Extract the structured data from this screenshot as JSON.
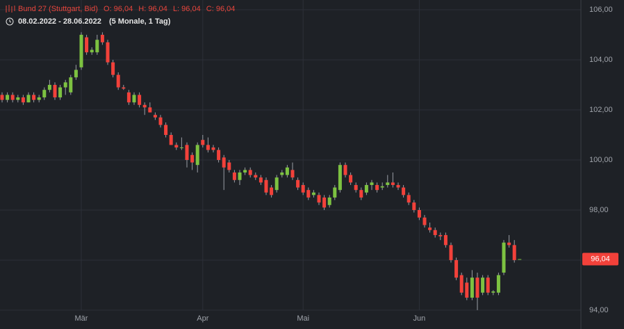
{
  "chart_data": {
    "type": "candlestick",
    "title": "Bund 27 (Stuttgart, Bid)",
    "quote": [
      "O: 96,04",
      "H: 96,04",
      "L: 96,04",
      "C: 96,04"
    ],
    "range": "08.02.2022 - 28.06.2022",
    "period": "(5 Monale, 1 Tag)",
    "last_price": {
      "value": 96.04,
      "label": "96,04"
    },
    "up_color": "#7dc241",
    "down_color": "#f2413a",
    "grid": true,
    "ylim": [
      93.47,
      106.39
    ],
    "yticks": [
      {
        "value": 94,
        "label": "94,00"
      },
      {
        "value": 96,
        "label": "96,00"
      },
      {
        "value": 98,
        "label": "98,00"
      },
      {
        "value": 100,
        "label": "100,00"
      },
      {
        "value": 102,
        "label": "102,00"
      },
      {
        "value": 104,
        "label": "104,00"
      },
      {
        "value": 106,
        "label": "106,00"
      }
    ],
    "categories": [
      null,
      null,
      null,
      null,
      null,
      null,
      null,
      null,
      null,
      null,
      null,
      null,
      null,
      null,
      null,
      "Mär",
      null,
      null,
      null,
      null,
      null,
      null,
      null,
      null,
      null,
      null,
      null,
      null,
      null,
      null,
      null,
      null,
      null,
      null,
      null,
      null,
      null,
      null,
      "Apr",
      null,
      null,
      null,
      null,
      null,
      null,
      null,
      null,
      null,
      null,
      null,
      null,
      null,
      null,
      null,
      null,
      null,
      null,
      "Mai",
      null,
      null,
      null,
      null,
      null,
      null,
      null,
      null,
      null,
      null,
      null,
      null,
      null,
      null,
      null,
      null,
      null,
      null,
      null,
      null,
      null,
      "Jun",
      null,
      null,
      null,
      null,
      null,
      null,
      null,
      null,
      null,
      null,
      null,
      null,
      null,
      null,
      null,
      null,
      null,
      null,
      null
    ],
    "open": [
      102.6,
      102.4,
      102.6,
      102.4,
      102.5,
      102.3,
      102.6,
      102.4,
      102.5,
      102.8,
      103.0,
      102.5,
      102.9,
      102.7,
      103.3,
      103.7,
      104.9,
      104.3,
      104.3,
      105.0,
      104.7,
      103.9,
      103.4,
      102.9,
      102.7,
      102.3,
      102.6,
      102.2,
      102.1,
      101.8,
      101.7,
      101.4,
      101.0,
      100.6,
      100.5,
      100.6,
      100.2,
      99.8,
      100.8,
      100.6,
      100.5,
      100.4,
      100.1,
      99.9,
      99.5,
      99.2,
      99.5,
      99.6,
      99.4,
      99.3,
      99.2,
      98.9,
      98.8,
      99.4,
      99.4,
      99.6,
      99.2,
      99.0,
      98.8,
      98.6,
      98.6,
      98.5,
      98.2,
      98.5,
      98.8,
      99.8,
      99.4,
      99.0,
      98.8,
      98.7,
      99.0,
      99.0,
      98.9,
      99.0,
      99.1,
      99.0,
      98.9,
      98.6,
      98.3,
      98.0,
      97.7,
      97.3,
      97.2,
      97.0,
      97.0,
      96.6,
      96.0,
      95.4,
      95.1,
      94.5,
      95.3,
      94.7,
      95.3,
      94.7,
      94.7,
      95.5,
      96.7,
      96.6,
      96.04
    ],
    "high": [
      102.7,
      102.7,
      102.7,
      102.6,
      102.6,
      102.7,
      102.7,
      102.6,
      102.9,
      103.2,
      103.1,
      103.0,
      103.2,
      103.4,
      103.8,
      105.1,
      105.0,
      104.5,
      105.0,
      105.1,
      104.8,
      104.0,
      103.5,
      103.0,
      102.8,
      102.7,
      102.7,
      102.3,
      102.3,
      101.9,
      101.8,
      101.5,
      101.1,
      100.7,
      100.9,
      100.7,
      100.3,
      100.7,
      101.0,
      100.9,
      100.6,
      100.5,
      100.2,
      100.0,
      99.6,
      99.6,
      99.7,
      99.7,
      99.5,
      99.4,
      99.3,
      99.0,
      99.4,
      99.6,
      99.8,
      99.9,
      99.3,
      99.1,
      98.9,
      98.8,
      98.7,
      98.6,
      98.6,
      99.0,
      99.9,
      99.9,
      99.5,
      99.1,
      98.9,
      99.1,
      99.2,
      99.1,
      99.1,
      99.4,
      99.5,
      99.1,
      99.0,
      98.7,
      98.4,
      98.1,
      97.8,
      97.5,
      97.3,
      97.1,
      97.1,
      96.7,
      96.1,
      95.5,
      95.3,
      95.6,
      95.5,
      95.4,
      95.4,
      94.8,
      95.5,
      96.8,
      97.0,
      96.8,
      96.04
    ],
    "low": [
      102.3,
      102.3,
      102.3,
      102.3,
      102.2,
      102.3,
      102.3,
      102.3,
      102.4,
      102.7,
      102.4,
      102.4,
      102.6,
      102.6,
      103.2,
      103.6,
      104.2,
      104.2,
      104.2,
      104.6,
      103.8,
      103.3,
      102.8,
      102.8,
      102.2,
      102.2,
      102.1,
      101.8,
      101.9,
      101.6,
      101.3,
      100.9,
      100.6,
      100.4,
      100.4,
      99.7,
      99.6,
      99.5,
      100.5,
      100.3,
      100.3,
      99.9,
      98.8,
      99.5,
      99.1,
      99.0,
      99.4,
      99.3,
      99.2,
      99.0,
      98.6,
      98.5,
      98.7,
      99.3,
      99.3,
      99.2,
      98.8,
      98.6,
      98.4,
      98.5,
      98.2,
      98.0,
      98.1,
      98.4,
      98.7,
      99.3,
      99.0,
      98.7,
      98.4,
      98.6,
      98.8,
      98.7,
      98.8,
      98.9,
      98.9,
      98.8,
      98.5,
      98.2,
      97.9,
      97.6,
      97.3,
      97.1,
      96.9,
      96.8,
      96.5,
      95.9,
      95.2,
      94.6,
      94.4,
      94.4,
      94.0,
      94.6,
      94.6,
      94.6,
      94.6,
      95.4,
      96.5,
      95.9,
      96.04
    ],
    "close": [
      102.4,
      102.6,
      102.4,
      102.5,
      102.3,
      102.6,
      102.4,
      102.5,
      102.8,
      103.0,
      102.5,
      102.9,
      103.1,
      103.3,
      103.6,
      105.0,
      104.3,
      104.4,
      104.8,
      104.7,
      103.9,
      103.4,
      102.9,
      102.85,
      102.3,
      102.6,
      102.2,
      102.1,
      101.9,
      101.7,
      101.4,
      101.0,
      100.6,
      100.5,
      100.5,
      100.0,
      99.9,
      100.6,
      100.6,
      100.4,
      100.4,
      100.0,
      99.7,
      99.6,
      99.2,
      99.5,
      99.6,
      99.4,
      99.3,
      99.1,
      98.7,
      98.6,
      99.3,
      99.5,
      99.7,
      99.3,
      98.9,
      98.7,
      98.5,
      98.7,
      98.3,
      98.1,
      98.5,
      98.9,
      99.8,
      99.4,
      99.1,
      98.8,
      98.5,
      99.0,
      99.1,
      98.8,
      98.95,
      99.1,
      99.0,
      98.9,
      98.6,
      98.3,
      98.0,
      97.7,
      97.4,
      97.2,
      97.0,
      96.95,
      96.6,
      96.0,
      95.3,
      94.7,
      94.5,
      95.3,
      94.5,
      95.3,
      94.7,
      94.75,
      95.4,
      96.7,
      96.6,
      96.0,
      96.04
    ]
  }
}
